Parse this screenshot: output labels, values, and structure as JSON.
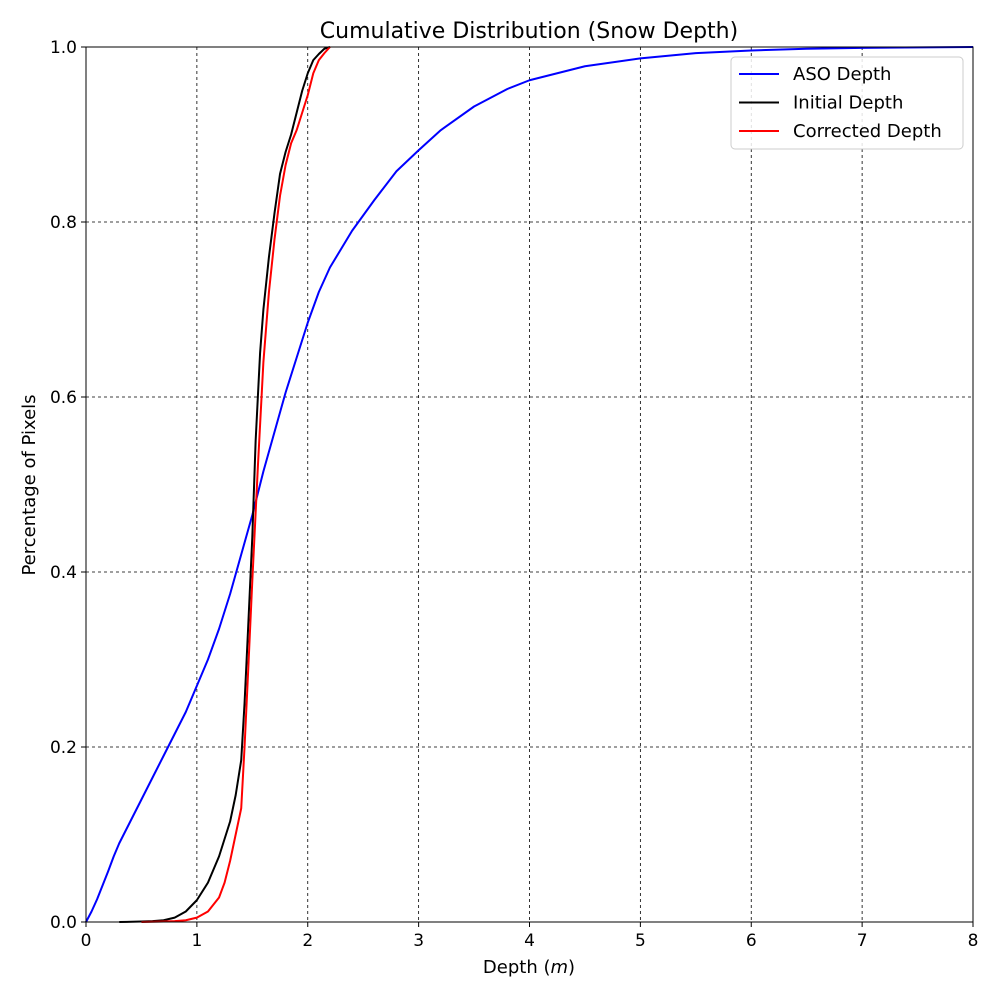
{
  "chart_data": {
    "type": "line",
    "title": "Cumulative Distribution (Snow Depth)",
    "xlabel": "Depth (",
    "xlabel_unit": "m",
    "xlabel_close": ")",
    "ylabel": "Percentage of Pixels",
    "xlim": [
      0,
      8
    ],
    "ylim": [
      0,
      1
    ],
    "xticks": [
      0,
      1,
      2,
      3,
      4,
      5,
      6,
      7,
      8
    ],
    "xtick_labels": [
      "0",
      "1",
      "2",
      "3",
      "4",
      "5",
      "6",
      "7",
      "8"
    ],
    "yticks": [
      0,
      0.2,
      0.4,
      0.6,
      0.8,
      1.0
    ],
    "ytick_labels": [
      "0.0",
      "0.2",
      "0.4",
      "0.6",
      "0.8",
      "1.0"
    ],
    "grid": true,
    "legend_position": "top-right",
    "series": [
      {
        "name": "ASO Depth",
        "color": "#0000ff",
        "points": [
          [
            0,
            0
          ],
          [
            0.05,
            0.012
          ],
          [
            0.1,
            0.026
          ],
          [
            0.15,
            0.042
          ],
          [
            0.2,
            0.058
          ],
          [
            0.25,
            0.075
          ],
          [
            0.3,
            0.09
          ],
          [
            0.4,
            0.115
          ],
          [
            0.5,
            0.14
          ],
          [
            0.6,
            0.165
          ],
          [
            0.7,
            0.19
          ],
          [
            0.8,
            0.215
          ],
          [
            0.9,
            0.24
          ],
          [
            1.0,
            0.27
          ],
          [
            1.1,
            0.3
          ],
          [
            1.2,
            0.335
          ],
          [
            1.3,
            0.375
          ],
          [
            1.4,
            0.42
          ],
          [
            1.5,
            0.465
          ],
          [
            1.6,
            0.515
          ],
          [
            1.7,
            0.56
          ],
          [
            1.8,
            0.605
          ],
          [
            1.9,
            0.645
          ],
          [
            2.0,
            0.685
          ],
          [
            2.1,
            0.72
          ],
          [
            2.2,
            0.748
          ],
          [
            2.4,
            0.79
          ],
          [
            2.6,
            0.825
          ],
          [
            2.8,
            0.858
          ],
          [
            3.0,
            0.882
          ],
          [
            3.2,
            0.905
          ],
          [
            3.5,
            0.932
          ],
          [
            3.8,
            0.952
          ],
          [
            4.0,
            0.962
          ],
          [
            4.5,
            0.978
          ],
          [
            5.0,
            0.987
          ],
          [
            5.5,
            0.993
          ],
          [
            6.0,
            0.996
          ],
          [
            6.5,
            0.998
          ],
          [
            7.0,
            0.999
          ],
          [
            8.0,
            1.0
          ]
        ]
      },
      {
        "name": "Initial Depth",
        "color": "#000000",
        "points": [
          [
            0.3,
            0
          ],
          [
            0.5,
            0.0005
          ],
          [
            0.6,
            0.001
          ],
          [
            0.7,
            0.002
          ],
          [
            0.8,
            0.005
          ],
          [
            0.9,
            0.012
          ],
          [
            1.0,
            0.025
          ],
          [
            1.1,
            0.045
          ],
          [
            1.2,
            0.075
          ],
          [
            1.3,
            0.115
          ],
          [
            1.35,
            0.145
          ],
          [
            1.4,
            0.185
          ],
          [
            1.43,
            0.25
          ],
          [
            1.46,
            0.33
          ],
          [
            1.5,
            0.44
          ],
          [
            1.53,
            0.55
          ],
          [
            1.57,
            0.65
          ],
          [
            1.6,
            0.7
          ],
          [
            1.65,
            0.76
          ],
          [
            1.7,
            0.81
          ],
          [
            1.75,
            0.855
          ],
          [
            1.8,
            0.88
          ],
          [
            1.85,
            0.9
          ],
          [
            1.9,
            0.925
          ],
          [
            1.95,
            0.95
          ],
          [
            2.0,
            0.97
          ],
          [
            2.05,
            0.985
          ],
          [
            2.1,
            0.992
          ],
          [
            2.15,
            0.998
          ],
          [
            2.2,
            1.0
          ]
        ]
      },
      {
        "name": "Corrected Depth",
        "color": "#ff0000",
        "points": [
          [
            0.5,
            0
          ],
          [
            0.7,
            0.0005
          ],
          [
            0.8,
            0.001
          ],
          [
            0.9,
            0.002
          ],
          [
            1.0,
            0.005
          ],
          [
            1.1,
            0.012
          ],
          [
            1.2,
            0.028
          ],
          [
            1.25,
            0.045
          ],
          [
            1.3,
            0.07
          ],
          [
            1.35,
            0.1
          ],
          [
            1.4,
            0.13
          ],
          [
            1.43,
            0.2
          ],
          [
            1.46,
            0.28
          ],
          [
            1.5,
            0.39
          ],
          [
            1.55,
            0.52
          ],
          [
            1.6,
            0.64
          ],
          [
            1.65,
            0.72
          ],
          [
            1.7,
            0.78
          ],
          [
            1.75,
            0.83
          ],
          [
            1.8,
            0.865
          ],
          [
            1.85,
            0.89
          ],
          [
            1.9,
            0.905
          ],
          [
            1.95,
            0.925
          ],
          [
            2.0,
            0.945
          ],
          [
            2.05,
            0.97
          ],
          [
            2.1,
            0.985
          ],
          [
            2.15,
            0.993
          ],
          [
            2.2,
            1.0
          ]
        ]
      }
    ]
  }
}
